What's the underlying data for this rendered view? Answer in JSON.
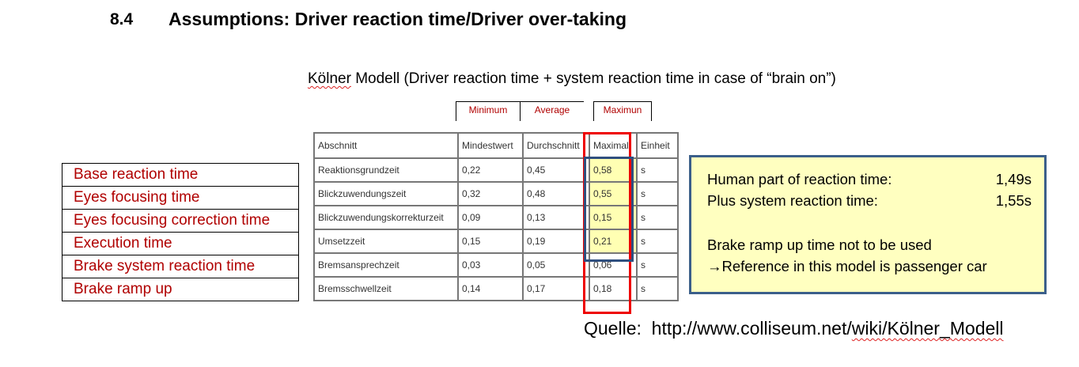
{
  "heading": {
    "number": "8.4",
    "title": "Assumptions: Driver reaction time/Driver over-taking"
  },
  "subtitle": {
    "word1": "Kölner",
    "rest": " Modell (Driver reaction time + system reaction time in case of “brain on”)"
  },
  "column_annotations": [
    "Minimum",
    "Average",
    "Maximun"
  ],
  "table": {
    "headers": [
      "Abschnitt",
      "Mindestwert",
      "Durchschnitt",
      "Maximal",
      "Einheit"
    ],
    "rows": [
      [
        "Reaktionsgrundzeit",
        "0,22",
        "0,45",
        "0,58",
        "s"
      ],
      [
        "Blickzuwendungszeit",
        "0,32",
        "0,48",
        "0,55",
        "s"
      ],
      [
        "Blickzuwendungskorrekturzeit",
        "0,09",
        "0,13",
        "0,15",
        "s"
      ],
      [
        "Umsetzzeit",
        "0,15",
        "0,19",
        "0,21",
        "s"
      ],
      [
        "Bremsansprechzeit",
        "0,03",
        "0,05",
        "0,06",
        "s"
      ],
      [
        "Bremsschwellzeit",
        "0,14",
        "0,17",
        "0,18",
        "s"
      ]
    ]
  },
  "english_labels": [
    "Base reaction time",
    "Eyes focusing time",
    "Eyes focusing correction time",
    "Execution time",
    "Brake system reaction time",
    "Brake ramp up"
  ],
  "info": {
    "human_label": "Human part of reaction time:",
    "human_value": "1,49s",
    "system_label": "Plus system reaction time:",
    "system_value": "1,55s",
    "note1": "Brake ramp up time not to be used",
    "note2": "→Reference in this model is passenger car"
  },
  "source": {
    "prefix": "Quelle:  ",
    "url_main": "http://www.colliseum.net/",
    "url_wiki": "wiki/Kölner_Modell"
  },
  "colors": {
    "red": "#b00000",
    "box_red": "#ee0000",
    "blue_border": "#3b5f8a",
    "highlight": "#ffffb3",
    "info_bg": "#ffffc0"
  }
}
